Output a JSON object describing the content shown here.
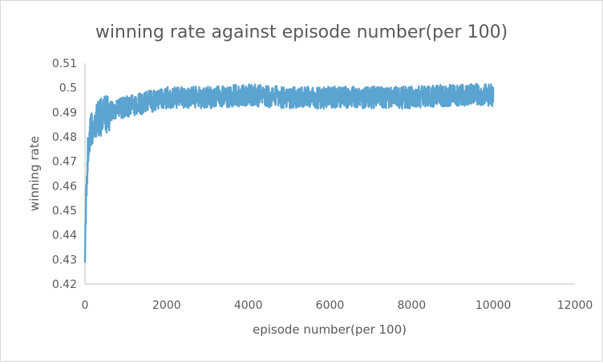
{
  "chart_data": {
    "type": "line",
    "title": "winning rate against episode number(per 100)",
    "xlabel": "episode number(per 100)",
    "ylabel": "winning rate",
    "xlim": [
      0,
      12000
    ],
    "ylim": [
      0.42,
      0.51
    ],
    "x_ticks": [
      "0",
      "2000",
      "4000",
      "6000",
      "8000",
      "10000",
      "12000"
    ],
    "y_ticks": [
      "0.42",
      "0.43",
      "0.44",
      "0.45",
      "0.46",
      "0.47",
      "0.48",
      "0.49",
      "0.5",
      "0.51"
    ],
    "grid": false,
    "legend": "none",
    "series_color": "#5ba3d0",
    "series": [
      {
        "x": [
          0,
          20,
          40,
          60,
          80,
          100,
          150,
          200,
          300,
          400,
          500,
          700,
          1000,
          1500,
          2000,
          3000,
          4000,
          5000,
          6000,
          7000,
          8000,
          9000,
          10000
        ],
        "y": [
          0.429,
          0.446,
          0.462,
          0.47,
          0.475,
          0.479,
          0.482,
          0.484,
          0.487,
          0.488,
          0.489,
          0.491,
          0.492,
          0.494,
          0.496,
          0.496,
          0.497,
          0.496,
          0.496,
          0.496,
          0.496,
          0.497,
          0.497
        ],
        "noise_amplitude": 0.0045,
        "min_observed": 0.429,
        "max_observed": 0.506
      }
    ]
  }
}
